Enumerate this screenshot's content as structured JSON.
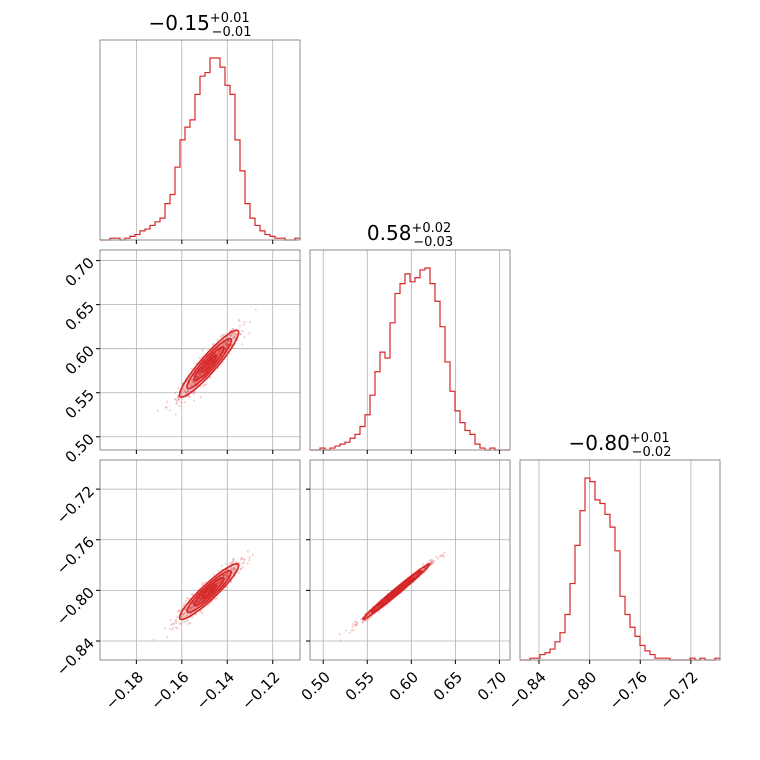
{
  "chart_data": {
    "type": "corner",
    "color": "#d62728",
    "grid": true,
    "parameters": [
      {
        "title": {
          "value": "−0.15",
          "upper": "+0.01",
          "lower": "−0.01"
        },
        "range": [
          -0.196,
          -0.108
        ],
        "ticks": [
          -0.18,
          -0.16,
          -0.14,
          -0.12
        ],
        "tick_labels": [
          "−0.18",
          "−0.16",
          "−0.14",
          "−0.12"
        ],
        "mean": -0.148,
        "sd": 0.0065
      },
      {
        "title": {
          "value": "0.58",
          "upper": "+0.02",
          "lower": "−0.03"
        },
        "range": [
          0.485,
          0.712
        ],
        "ticks": [
          0.5,
          0.55,
          0.6,
          0.65,
          0.7
        ],
        "tick_labels": [
          "0.50",
          "0.55",
          "0.60",
          "0.65",
          "0.70"
        ],
        "mean": 0.583,
        "sd": 0.019
      },
      {
        "title": {
          "value": "−0.80",
          "upper": "+0.01",
          "lower": "−0.02"
        },
        "range": [
          -0.855,
          -0.697
        ],
        "ticks": [
          -0.84,
          -0.8,
          -0.76,
          -0.72
        ],
        "tick_labels": [
          "−0.84",
          "−0.80",
          "−0.76",
          "−0.72"
        ],
        "mean": -0.801,
        "sd": 0.011
      }
    ],
    "histograms": [
      {
        "bins": 40,
        "counts": [
          0,
          0,
          1,
          1,
          0,
          1,
          2,
          3,
          5,
          6,
          8,
          10,
          12,
          20,
          25,
          40,
          55,
          62,
          66,
          80,
          90,
          92,
          100,
          100,
          95,
          85,
          80,
          55,
          38,
          20,
          12,
          8,
          5,
          3,
          2,
          1,
          1,
          0,
          0,
          1
        ]
      },
      {
        "bins": 40,
        "counts": [
          0,
          0,
          1,
          0,
          1,
          2,
          3,
          4,
          6,
          8,
          12,
          18,
          28,
          40,
          50,
          47,
          65,
          80,
          85,
          90,
          86,
          88,
          92,
          93,
          85,
          76,
          63,
          45,
          30,
          20,
          14,
          10,
          8,
          3,
          1,
          0,
          1,
          0,
          0,
          0
        ]
      },
      {
        "bins": 40,
        "counts": [
          0,
          0,
          1,
          1,
          3,
          4,
          6,
          10,
          15,
          25,
          42,
          63,
          82,
          100,
          98,
          88,
          86,
          80,
          73,
          60,
          35,
          25,
          18,
          13,
          8,
          5,
          3,
          1,
          1,
          1,
          0,
          0,
          0,
          0,
          1,
          0,
          1,
          0,
          0,
          1
        ]
      }
    ],
    "correlations": {
      "p1_p0": 0.93,
      "p2_p0": 0.93,
      "p2_p1": 0.99
    }
  }
}
